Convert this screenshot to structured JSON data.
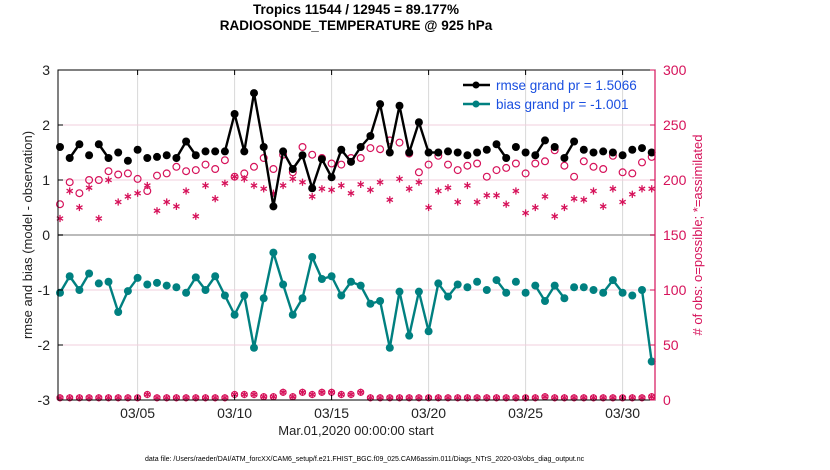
{
  "chart_data": {
    "type": "line",
    "title": "Tropics 11544 / 12945 = 89.177%",
    "subtitle": "RADIOSONDE_TEMPERATURE @ 925 hPa",
    "xlabel": "Mar.01,2020 00:00:00 start",
    "ylabel": "rmse and bias (model - observation)",
    "ylabel_right": "# of obs: o=possible; *=assimilated",
    "footer": "data file: /Users/raeder/DAI/ATM_forcXX/CAM6_setup/f.e21.FHIST_BGC.f09_025.CAM6assim.011/Diags_NTrS_2020-03/obs_diag_output.nc",
    "xlim_days": [
      0,
      31
    ],
    "ylim": [
      -3,
      3
    ],
    "ylim_right": [
      0,
      300
    ],
    "x_ticks": [
      {
        "day": 4,
        "label": "03/05"
      },
      {
        "day": 9,
        "label": "03/10"
      },
      {
        "day": 14,
        "label": "03/15"
      },
      {
        "day": 19,
        "label": "03/20"
      },
      {
        "day": 24,
        "label": "03/25"
      },
      {
        "day": 29,
        "label": "03/30"
      }
    ],
    "y_ticks": [
      -3,
      -2,
      -1,
      0,
      1,
      2,
      3
    ],
    "y_ticks_right": [
      0,
      50,
      100,
      150,
      200,
      250,
      300
    ],
    "grid": true,
    "legend_position": "top-right",
    "time_step_days": 0.5,
    "series": [
      {
        "name": "rmse grand pr = 1.5066",
        "color": "#000000",
        "axis": "left",
        "marker": "filled-circle",
        "values": [
          1.6,
          1.4,
          1.65,
          1.45,
          1.65,
          1.4,
          1.5,
          1.35,
          1.55,
          1.4,
          1.42,
          1.45,
          1.4,
          1.7,
          1.45,
          1.52,
          1.52,
          1.52,
          2.2,
          1.52,
          2.58,
          1.6,
          0.52,
          1.52,
          1.2,
          1.45,
          0.85,
          1.38,
          1.05,
          1.55,
          1.33,
          1.6,
          1.8,
          2.38,
          1.5,
          2.35,
          1.5,
          2.05,
          1.5,
          1.5,
          1.52,
          1.5,
          1.45,
          1.5,
          1.55,
          1.65,
          1.4,
          1.6,
          1.5,
          1.45,
          1.72,
          1.6,
          1.4,
          1.7,
          1.55,
          1.5,
          1.52,
          1.5,
          1.45,
          1.55,
          1.58,
          1.5
        ]
      },
      {
        "name": "bias grand pr = -1.001",
        "color": "#008080",
        "axis": "left",
        "marker": "filled-circle",
        "values": [
          -1.05,
          -0.75,
          -1.0,
          -0.7,
          -0.88,
          -0.85,
          -1.4,
          -1.02,
          -0.78,
          -0.9,
          -0.87,
          -0.92,
          -0.95,
          -1.05,
          -0.77,
          -1.0,
          -0.75,
          -1.1,
          -1.45,
          -1.1,
          -2.05,
          -1.15,
          -0.32,
          -0.9,
          -1.45,
          -1.15,
          -0.4,
          -0.8,
          -0.75,
          -1.1,
          -0.85,
          -0.92,
          -1.25,
          -1.2,
          -2.05,
          -1.03,
          -1.83,
          -1.03,
          -1.75,
          -0.88,
          -1.12,
          -0.9,
          -0.95,
          -0.85,
          -1.0,
          -0.82,
          -1.05,
          -0.85,
          -1.05,
          -0.92,
          -1.2,
          -0.92,
          -1.15,
          -0.95,
          -0.95,
          -1.0,
          -1.05,
          -0.82,
          -1.05,
          -1.1,
          -1.0,
          -2.3
        ]
      },
      {
        "name": "# obs possible",
        "color": "#d6125a",
        "axis": "right",
        "marker": "open-circle",
        "values": [
          178,
          198,
          188,
          200,
          200,
          208,
          205,
          206,
          201,
          190,
          204,
          206,
          212,
          208,
          209,
          214,
          210,
          218,
          203,
          206,
          212,
          220,
          210,
          223,
          207,
          230,
          223,
          220,
          215,
          214,
          220,
          220,
          229,
          228,
          236,
          234,
          224,
          207,
          214,
          222,
          214,
          209,
          213,
          215,
          203,
          209,
          211,
          215,
          206,
          215,
          217,
          227,
          213,
          203,
          217,
          212,
          210,
          222,
          207,
          206,
          216,
          221
        ]
      },
      {
        "name": "# obs assimilated",
        "color": "#d6125a",
        "axis": "right",
        "marker": "asterisk",
        "values": [
          165,
          190,
          175,
          193,
          165,
          200,
          180,
          185,
          188,
          195,
          172,
          180,
          176,
          190,
          167,
          195,
          183,
          197,
          203,
          201,
          195,
          192,
          188,
          195,
          201,
          198,
          185,
          192,
          191,
          195,
          188,
          196,
          191,
          198,
          182,
          201,
          192,
          198,
          175,
          190,
          193,
          180,
          195,
          180,
          186,
          186,
          178,
          190,
          170,
          175,
          185,
          167,
          175,
          183,
          182,
          190,
          176,
          192,
          180,
          187,
          192,
          192
        ]
      }
    ],
    "obs_bottom_markers": [
      {
        "name": "possible near zero",
        "values": [
          2,
          2,
          2,
          2,
          2,
          2,
          2,
          2,
          2,
          5,
          2,
          2,
          2,
          2,
          2,
          2,
          2,
          2,
          5,
          5,
          5,
          3,
          3,
          7,
          3,
          7,
          5,
          7,
          7,
          5,
          5,
          7,
          2,
          2,
          2,
          2,
          2,
          2,
          2,
          2,
          2,
          2,
          2,
          2,
          2,
          2,
          2,
          2,
          2,
          2,
          3,
          2,
          2,
          2,
          2,
          2,
          2,
          2,
          2,
          2,
          2,
          3
        ]
      }
    ]
  }
}
